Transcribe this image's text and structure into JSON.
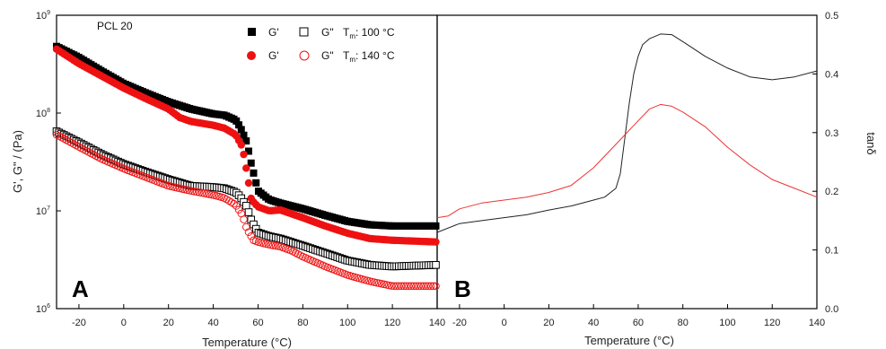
{
  "chart_data": [
    {
      "type": "scatter",
      "panel_label": "A",
      "title": "PCL 20",
      "xlabel": "Temperature (°C)",
      "ylabel": "G', G\" / (Pa)",
      "xlim": [
        -30,
        140
      ],
      "ylim": [
        1000000,
        1000000000
      ],
      "yscale": "log",
      "x_ticks": [
        "-20",
        "0",
        "20",
        "40",
        "60",
        "80",
        "100",
        "120",
        "140"
      ],
      "y_ticks": [
        {
          "base": "10",
          "exp": "6"
        },
        {
          "base": "10",
          "exp": "7"
        },
        {
          "base": "10",
          "exp": "8"
        },
        {
          "base": "10",
          "exp": "9"
        }
      ],
      "legend": {
        "placement": "top-right",
        "rows": [
          {
            "g1": "G'",
            "g2": "G\"",
            "tm_label": "T",
            "tm_sub": "m",
            "tm_value": ": 100 °C",
            "color": "#000000"
          },
          {
            "g1": "G'",
            "g2": "G\"",
            "tm_label": "T",
            "tm_sub": "m",
            "tm_value": ": 140 °C",
            "color": "#ee1111"
          }
        ]
      },
      "series": [
        {
          "color": "#000000",
          "marker": "square-filled",
          "x": [
            -30,
            -20,
            -10,
            0,
            10,
            20,
            30,
            40,
            45,
            50,
            52,
            55,
            57,
            60,
            65,
            70,
            80,
            90,
            100,
            110,
            120,
            130,
            140
          ],
          "y": [
            480000000,
            370000000,
            270000000,
            200000000,
            160000000,
            130000000,
            110000000,
            98000000,
            95000000,
            85000000,
            72000000,
            50000000,
            30000000,
            16000000,
            13000000,
            12000000,
            10500000,
            9000000,
            7800000,
            7200000,
            7000000,
            7000000,
            7000000
          ]
        },
        {
          "color": "#ee1111",
          "marker": "circle-filled",
          "x": [
            -30,
            -20,
            -10,
            0,
            10,
            20,
            25,
            30,
            40,
            45,
            50,
            53,
            55,
            57,
            60,
            65,
            70,
            80,
            90,
            100,
            110,
            120,
            130,
            140
          ],
          "y": [
            450000000,
            320000000,
            240000000,
            180000000,
            140000000,
            110000000,
            90000000,
            82000000,
            75000000,
            70000000,
            60000000,
            45000000,
            25000000,
            13000000,
            11000000,
            10000000,
            10200000,
            8500000,
            7000000,
            5900000,
            5200000,
            5000000,
            4900000,
            4800000
          ]
        },
        {
          "color": "#000000",
          "marker": "square-open",
          "x": [
            -30,
            -20,
            -10,
            0,
            10,
            20,
            30,
            40,
            45,
            50,
            52,
            55,
            57,
            60,
            65,
            70,
            80,
            90,
            100,
            110,
            120,
            130,
            140
          ],
          "y": [
            65000000,
            50000000,
            38000000,
            30000000,
            25000000,
            21000000,
            18000000,
            17500000,
            17000000,
            15500000,
            14000000,
            11000000,
            8000000,
            6000000,
            5500000,
            5200000,
            4400000,
            3700000,
            3100000,
            2800000,
            2700000,
            2750000,
            2800000
          ]
        },
        {
          "color": "#ee1111",
          "marker": "circle-open",
          "x": [
            -30,
            -20,
            -10,
            0,
            10,
            20,
            30,
            40,
            45,
            50,
            53,
            55,
            58,
            60,
            65,
            70,
            75,
            80,
            90,
            100,
            110,
            120,
            130,
            140
          ],
          "y": [
            60000000,
            45000000,
            34000000,
            27000000,
            22000000,
            18000000,
            16000000,
            14500000,
            13500000,
            11500000,
            9000000,
            6500000,
            5000000,
            4800000,
            4500000,
            4300000,
            3900000,
            3400000,
            2700000,
            2200000,
            1900000,
            1700000,
            1700000,
            1700000
          ]
        }
      ]
    },
    {
      "type": "line",
      "panel_label": "B",
      "xlabel": "Temperature (°C)",
      "ylabel": "tanδ",
      "xlim": [
        -30,
        140
      ],
      "ylim": [
        0,
        0.5
      ],
      "x_ticks": [
        "-20",
        "0",
        "20",
        "40",
        "60",
        "80",
        "100",
        "120",
        "140"
      ],
      "y_ticks": [
        "0.0",
        "0.1",
        "0.2",
        "0.3",
        "0.4",
        "0.5"
      ],
      "series": [
        {
          "color": "#222222",
          "x": [
            -30,
            -20,
            -10,
            0,
            10,
            20,
            30,
            40,
            45,
            50,
            52,
            54,
            56,
            58,
            60,
            62,
            65,
            70,
            75,
            80,
            90,
            100,
            110,
            120,
            130,
            140
          ],
          "y": [
            0.13,
            0.145,
            0.15,
            0.155,
            0.16,
            0.168,
            0.175,
            0.185,
            0.19,
            0.205,
            0.23,
            0.29,
            0.35,
            0.4,
            0.43,
            0.45,
            0.46,
            0.468,
            0.467,
            0.455,
            0.43,
            0.41,
            0.395,
            0.39,
            0.395,
            0.405
          ]
        },
        {
          "color": "#ee3333",
          "x": [
            -30,
            -25,
            -20,
            -10,
            0,
            10,
            20,
            30,
            40,
            50,
            60,
            65,
            70,
            75,
            80,
            90,
            100,
            110,
            120,
            130,
            140
          ],
          "y": [
            0.155,
            0.158,
            0.17,
            0.18,
            0.185,
            0.19,
            0.198,
            0.21,
            0.24,
            0.28,
            0.32,
            0.34,
            0.348,
            0.345,
            0.335,
            0.31,
            0.275,
            0.245,
            0.22,
            0.205,
            0.19
          ]
        }
      ]
    }
  ]
}
